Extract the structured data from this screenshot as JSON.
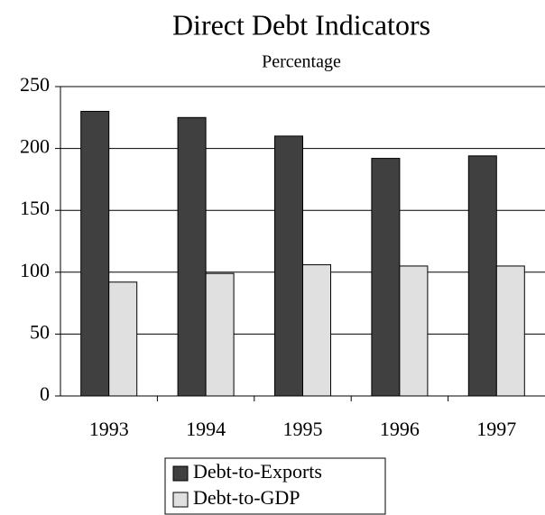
{
  "chart_data": {
    "type": "bar",
    "title": "Direct Debt Indicators",
    "subtitle": "Percentage",
    "categories": [
      "1993",
      "1994",
      "1995",
      "1996",
      "1997"
    ],
    "series": [
      {
        "name": "Debt-to-Exports",
        "color": "#404040",
        "values": [
          230,
          225,
          210,
          192,
          194
        ]
      },
      {
        "name": "Debt-to-GDP",
        "color": "#e0e0e0",
        "values": [
          92,
          99,
          106,
          105,
          105
        ]
      }
    ],
    "ylim": [
      0,
      250
    ],
    "yticks": [
      0,
      50,
      100,
      150,
      200,
      250
    ],
    "grid": true,
    "legend": "bottom"
  }
}
